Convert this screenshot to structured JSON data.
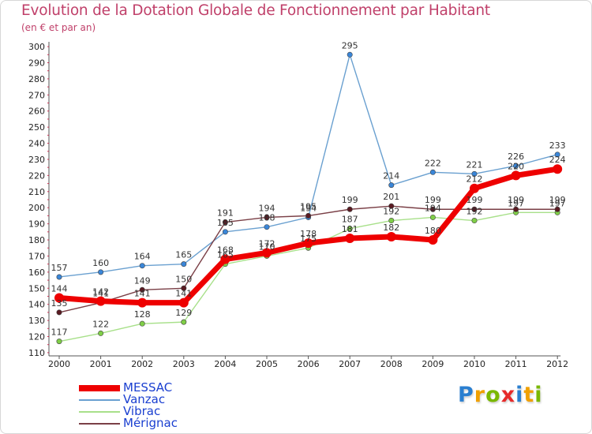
{
  "header": {
    "title": "Evolution de la Dotation Globale de Fonctionnement par Habitant",
    "subtitle": "(en € et par an)"
  },
  "logo": {
    "letters": [
      "P",
      "r",
      "o",
      "x",
      "i",
      "t",
      "i"
    ],
    "colors": [
      "#2a7fd0",
      "#f0a000",
      "#7ab800",
      "#e62a2a",
      "#2a7fd0",
      "#f0a000",
      "#7ab800"
    ]
  },
  "chart_data": {
    "type": "line",
    "title": "Evolution de la Dotation Globale de Fonctionnement par Habitant",
    "subtitle": "(en € et par an)",
    "xlabel": "",
    "ylabel": "",
    "categories": [
      "2000",
      "2001",
      "2002",
      "2003",
      "2004",
      "2005",
      "2006",
      "2007",
      "2008",
      "2009",
      "2010",
      "2011",
      "2012"
    ],
    "y_ticks": [
      "110",
      "120",
      "130",
      "140",
      "150",
      "160",
      "170",
      "180",
      "190",
      "200",
      "210",
      "220",
      "230",
      "240",
      "250",
      "260",
      "270",
      "280",
      "290",
      "300"
    ],
    "ylim": [
      108,
      302
    ],
    "grid": false,
    "legend": "bottom-left",
    "series": [
      {
        "name": "MESSAC",
        "color": "#ee0000",
        "style": "thick",
        "values": [
          144,
          142,
          141,
          141,
          168,
          172,
          178,
          181,
          182,
          180,
          212,
          220,
          224
        ],
        "labels": [
          "144",
          "142",
          "141",
          "141",
          "168",
          "172",
          "178",
          "181",
          "182",
          "180",
          "212",
          "220",
          "224"
        ]
      },
      {
        "name": "Vanzac",
        "color": "#6aa0d0",
        "marker": "#3a86d8",
        "values": [
          157,
          160,
          164,
          165,
          185,
          188,
          194,
          295,
          214,
          222,
          221,
          226,
          233
        ],
        "labels": [
          "157",
          "160",
          "164",
          "165",
          "185",
          "188",
          "194",
          "295",
          "214",
          "222",
          "221",
          "226",
          "233"
        ]
      },
      {
        "name": "Vibrac",
        "color": "#a8e08a",
        "marker": "#7fce47",
        "values": [
          117,
          122,
          128,
          129,
          165,
          170,
          175,
          187,
          192,
          194,
          192,
          197,
          197
        ],
        "labels": [
          "117",
          "122",
          "128",
          "129",
          "165",
          "170",
          "175",
          "187",
          "192",
          "194",
          "192",
          "197",
          "197"
        ]
      },
      {
        "name": "Mérignac",
        "color": "#7a3f46",
        "marker": "#5a1a22",
        "values": [
          135,
          141,
          149,
          150,
          191,
          194,
          195,
          199,
          201,
          199,
          199,
          199,
          199
        ],
        "labels": [
          "135",
          "141",
          "149",
          "150",
          "191",
          "194",
          "195",
          "199",
          "201",
          "199",
          "199",
          "199",
          "199"
        ]
      }
    ]
  }
}
